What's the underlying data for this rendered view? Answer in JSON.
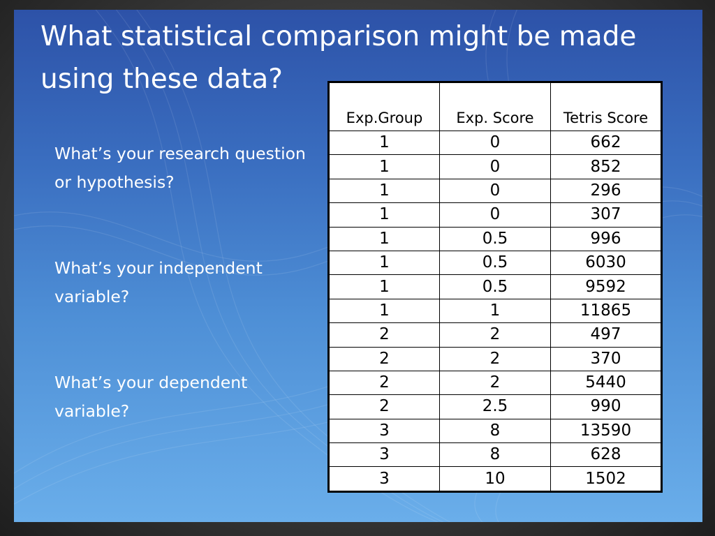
{
  "slide": {
    "title": "What statistical comparison might be made using these data?",
    "questions": [
      "What’s your research question or hypothesis?",
      "What’s your independent variable?",
      "What’s your dependent variable?"
    ]
  },
  "table": {
    "headers": [
      "Exp.Group",
      "Exp. Score",
      "Tetris Score"
    ],
    "rows": [
      [
        "1",
        "0",
        "662"
      ],
      [
        "1",
        "0",
        "852"
      ],
      [
        "1",
        "0",
        "296"
      ],
      [
        "1",
        "0",
        "307"
      ],
      [
        "1",
        "0.5",
        "996"
      ],
      [
        "1",
        "0.5",
        "6030"
      ],
      [
        "1",
        "0.5",
        "9592"
      ],
      [
        "1",
        "1",
        "11865"
      ],
      [
        "2",
        "2",
        "497"
      ],
      [
        "2",
        "2",
        "370"
      ],
      [
        "2",
        "2",
        "5440"
      ],
      [
        "2",
        "2.5",
        "990"
      ],
      [
        "3",
        "8",
        "13590"
      ],
      [
        "3",
        "8",
        "628"
      ],
      [
        "3",
        "10",
        "1502"
      ]
    ]
  },
  "colors": {
    "slide_top": "#2d52a8",
    "slide_bottom": "#6aaeea",
    "text": "#ffffff",
    "table_bg": "#ffffff"
  }
}
